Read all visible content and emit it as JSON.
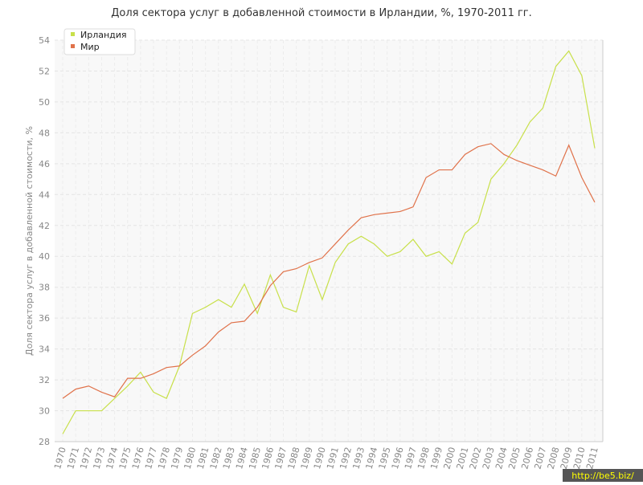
{
  "chart_data": {
    "type": "line",
    "title": "Доля сектора услуг в добавленной стоимости в Ирландии, %, 1970-2011 гг.",
    "y_label": "Доля сектора услуг в добавленной стоимости, %",
    "watermark": "http://be5.biz/",
    "categories": [
      "1970",
      "1971",
      "1972",
      "1973",
      "1974",
      "1975",
      "1976",
      "1977",
      "1978",
      "1979",
      "1980",
      "1981",
      "1982",
      "1983",
      "1984",
      "1985",
      "1986",
      "1987",
      "1988",
      "1989",
      "1990",
      "1991",
      "1992",
      "1993",
      "1994",
      "1995",
      "1996",
      "1997",
      "1998",
      "1999",
      "2000",
      "2001",
      "2002",
      "2003",
      "2004",
      "2005",
      "2006",
      "2007",
      "2008",
      "2009",
      "2010",
      "2011"
    ],
    "series": [
      {
        "name": "Ирландия",
        "color": "#c8e04a",
        "values": [
          28.5,
          30.0,
          30.0,
          30.0,
          30.8,
          31.6,
          32.5,
          31.2,
          30.8,
          32.9,
          36.3,
          36.7,
          37.2,
          36.7,
          38.2,
          36.3,
          38.8,
          36.7,
          36.4,
          39.4,
          37.2,
          39.6,
          40.8,
          41.3,
          40.8,
          40.0,
          40.3,
          41.1,
          40.0,
          40.3,
          39.5,
          41.5,
          42.2,
          45.0,
          46.0,
          47.2,
          48.7,
          49.6,
          52.3,
          53.3,
          51.7,
          47.0
        ]
      },
      {
        "name": "Мир",
        "color": "#e0724a",
        "values": [
          30.8,
          31.4,
          31.6,
          31.2,
          30.9,
          32.1,
          32.1,
          32.4,
          32.8,
          32.9,
          33.6,
          34.2,
          35.1,
          35.7,
          35.8,
          36.7,
          38.1,
          39.0,
          39.2,
          39.6,
          39.9,
          40.8,
          41.7,
          42.5,
          42.7,
          42.8,
          42.9,
          43.2,
          45.1,
          45.6,
          45.6,
          46.6,
          47.1,
          47.3,
          46.6,
          46.2,
          45.9,
          45.6,
          45.2,
          47.2,
          45.1,
          43.5
        ]
      }
    ],
    "ylim": [
      28,
      54
    ],
    "yticks": [
      28,
      30,
      32,
      34,
      36,
      38,
      40,
      42,
      44,
      46,
      48,
      50,
      52,
      54
    ],
    "grid": true,
    "legend": "top-left"
  }
}
